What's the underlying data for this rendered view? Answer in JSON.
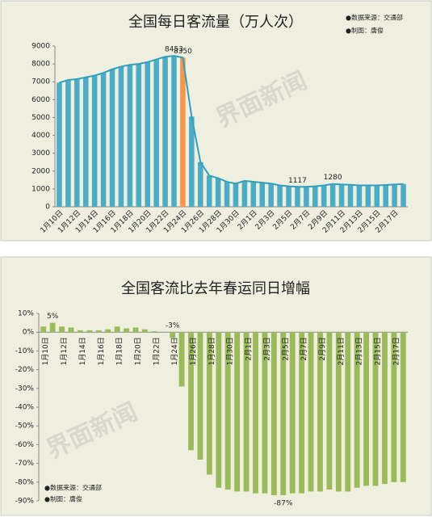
{
  "chart_data": [
    {
      "type": "bar",
      "title": "全国每日客流量（万人次）",
      "annotations": [
        "●数据来源：交通部",
        "●制图：唐俊"
      ],
      "watermark": "界面新闻",
      "categories": [
        "1月10日",
        null,
        "1月12日",
        null,
        "1月14日",
        null,
        "1月16日",
        null,
        "1月18日",
        null,
        "1月20日",
        null,
        "1月22日",
        null,
        "1月24日",
        null,
        "1月26日",
        null,
        "1月28日",
        null,
        "1月30日",
        null,
        "2月1日",
        null,
        "2月3日",
        null,
        "2月5日",
        null,
        "2月7日",
        null,
        "2月9日",
        null,
        "2月11日",
        null,
        "2月13日",
        null,
        "2月15日",
        null,
        "2月17日",
        null
      ],
      "values": [
        6950,
        7100,
        7150,
        7250,
        7350,
        7500,
        7700,
        7850,
        7950,
        8000,
        8100,
        8250,
        8400,
        8453,
        8350,
        5050,
        2500,
        1750,
        1600,
        1400,
        1300,
        1450,
        1400,
        1350,
        1300,
        1200,
        1150,
        1117,
        1120,
        1150,
        1200,
        1280,
        1250,
        1230,
        1200,
        1200,
        1200,
        1220,
        1250,
        1280
      ],
      "value_labels": [
        null,
        null,
        null,
        null,
        null,
        null,
        null,
        null,
        null,
        null,
        null,
        null,
        null,
        "8453",
        "8350",
        null,
        null,
        null,
        null,
        null,
        null,
        null,
        null,
        null,
        null,
        null,
        null,
        "1117",
        null,
        null,
        null,
        "1280",
        null,
        null,
        null,
        null,
        null,
        null,
        null,
        null
      ],
      "colors": [
        "#4bacc6",
        "#4bacc6",
        "#4bacc6",
        "#4bacc6",
        "#4bacc6",
        "#4bacc6",
        "#4bacc6",
        "#4bacc6",
        "#4bacc6",
        "#4bacc6",
        "#4bacc6",
        "#4bacc6",
        "#4bacc6",
        "#4bacc6",
        "#f79646",
        "#4bacc6",
        "#4bacc6",
        "#4bacc6",
        "#4bacc6",
        "#4bacc6",
        "#4bacc6",
        "#4bacc6",
        "#4bacc6",
        "#4bacc6",
        "#4bacc6",
        "#4bacc6",
        "#4bacc6",
        "#4bacc6",
        "#4bacc6",
        "#4bacc6",
        "#4bacc6",
        "#4bacc6",
        "#4bacc6",
        "#4bacc6",
        "#4bacc6",
        "#4bacc6",
        "#4bacc6",
        "#4bacc6",
        "#4bacc6",
        "#4bacc6"
      ],
      "trend_line": true,
      "line_color": "#31a0c0",
      "ylim": [
        0,
        9000
      ],
      "yticks": [
        0,
        1000,
        2000,
        3000,
        4000,
        5000,
        6000,
        7000,
        8000,
        9000
      ],
      "grid": false
    },
    {
      "type": "bar",
      "title": "全国客流比去年春运同日增幅",
      "annotations": [
        "●数据来源：交通部",
        "●制图：唐俊"
      ],
      "watermark": "界面新闻",
      "categories": [
        "1月10日",
        null,
        "1月12日",
        null,
        "1月14日",
        null,
        "1月16日",
        null,
        "1月18日",
        null,
        "1月20日",
        null,
        "1月22日",
        null,
        "1月24日",
        null,
        "1月26日",
        null,
        "1月28日",
        null,
        "1月30日",
        null,
        "2月1日",
        null,
        "2月3日",
        null,
        "2月5日",
        null,
        "2月7日",
        null,
        "2月9日",
        null,
        "2月11日",
        null,
        "2月13日",
        null,
        "2月15日",
        null,
        "2月17日",
        null
      ],
      "values": [
        3,
        5,
        3,
        2.5,
        1,
        1,
        1,
        1.5,
        3,
        2,
        2.5,
        1.5,
        0.5,
        0,
        -3,
        -29,
        -63,
        -68,
        -76,
        -83,
        -84,
        -85,
        -85,
        -86,
        -86,
        -87,
        -87,
        -86,
        -86,
        -85,
        -85,
        -84,
        -85,
        -85,
        -83,
        -82,
        -82,
        -81,
        -80,
        -80
      ],
      "value_labels": [
        null,
        "5%",
        null,
        null,
        null,
        null,
        null,
        null,
        null,
        null,
        null,
        null,
        null,
        null,
        "-3%",
        null,
        null,
        null,
        null,
        null,
        null,
        null,
        null,
        null,
        null,
        null,
        "-87%",
        null,
        null,
        null,
        null,
        null,
        null,
        null,
        null,
        null,
        null,
        null,
        null,
        null
      ],
      "color": "#9bbb59",
      "ylim": [
        -90,
        10
      ],
      "yticks": [
        {
          "value": -90,
          "label": "-90%"
        },
        {
          "value": -80,
          "label": "-80%"
        },
        {
          "value": -70,
          "label": "-70%"
        },
        {
          "value": -60,
          "label": "-60%"
        },
        {
          "value": -50,
          "label": "-50%"
        },
        {
          "value": -40,
          "label": "-40%"
        },
        {
          "value": -30,
          "label": "-30%"
        },
        {
          "value": -20,
          "label": "-20%"
        },
        {
          "value": -10,
          "label": "-10%"
        },
        {
          "value": 0,
          "label": "0%"
        },
        {
          "value": 10,
          "label": "10%"
        }
      ],
      "grid": false
    }
  ]
}
